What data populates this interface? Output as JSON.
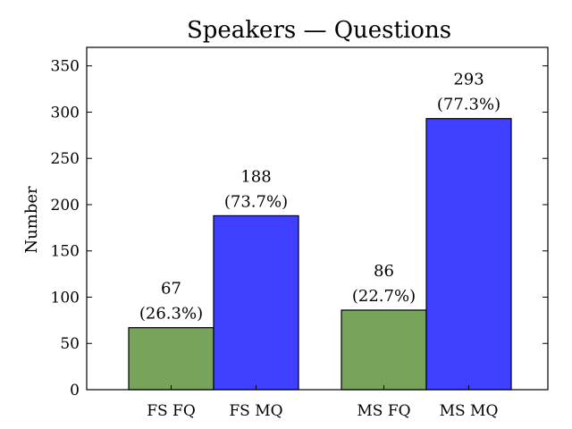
{
  "chart_data": {
    "type": "bar",
    "title": "Speakers — Questions",
    "xlabel": "",
    "ylabel": "Number",
    "ylim": [
      0,
      370
    ],
    "yticks": [
      0,
      50,
      100,
      150,
      200,
      250,
      300,
      350
    ],
    "grid": false,
    "categories": [
      "FS FQ",
      "FS MQ",
      "MS FQ",
      "MS MQ"
    ],
    "values": [
      67,
      188,
      86,
      293
    ],
    "percent_labels": [
      "(26.3%)",
      "(73.7%)",
      "(22.7%)",
      "(77.3%)"
    ],
    "value_labels": [
      "67",
      "188",
      "86",
      "293"
    ],
    "bar_colors": [
      "#77a35a",
      "#3f3fff",
      "#77a35a",
      "#3f3fff"
    ]
  }
}
